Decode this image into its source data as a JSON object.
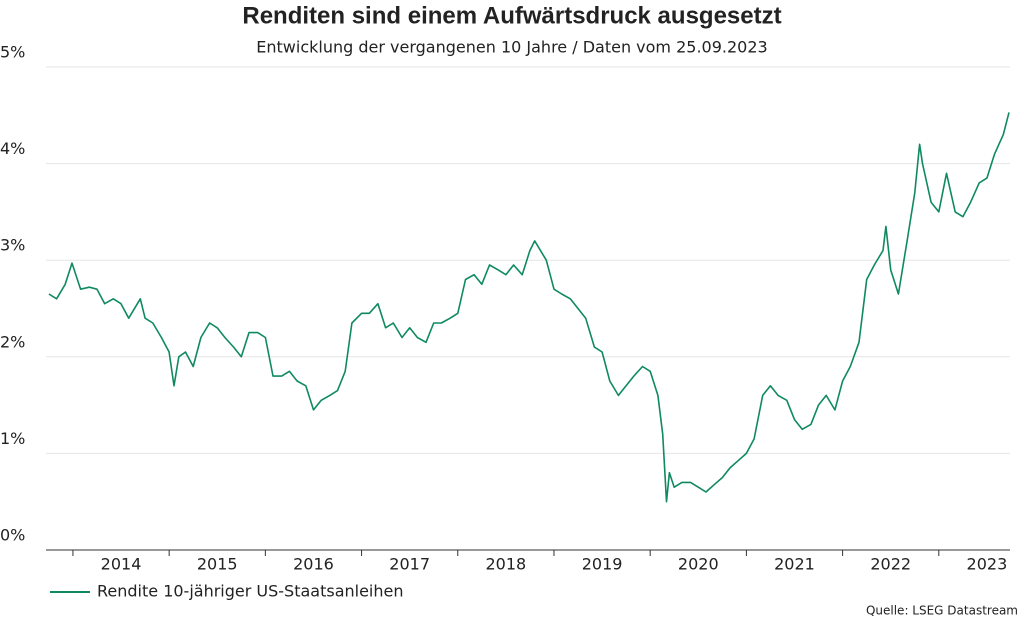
{
  "chart_data": {
    "type": "line",
    "title": "Renditen sind einem Aufwärtsdruck ausgesetzt",
    "subtitle": "Entwicklung der vergangenen 10 Jahre / Daten vom 25.09.2023",
    "source": "Quelle: LSEG Datastream",
    "x": [
      2013.75,
      2013.83,
      2013.92,
      2013.99,
      2014.08,
      2014.17,
      2014.25,
      2014.33,
      2014.42,
      2014.5,
      2014.58,
      2014.7,
      2014.75,
      2014.83,
      2014.92,
      2015.0,
      2015.05,
      2015.1,
      2015.17,
      2015.25,
      2015.33,
      2015.42,
      2015.5,
      2015.58,
      2015.67,
      2015.75,
      2015.83,
      2015.92,
      2016.0,
      2016.08,
      2016.17,
      2016.25,
      2016.33,
      2016.42,
      2016.5,
      2016.58,
      2016.67,
      2016.75,
      2016.83,
      2016.9,
      2017.0,
      2017.08,
      2017.17,
      2017.25,
      2017.33,
      2017.42,
      2017.5,
      2017.58,
      2017.67,
      2017.75,
      2017.83,
      2017.92,
      2018.0,
      2018.08,
      2018.17,
      2018.25,
      2018.33,
      2018.42,
      2018.5,
      2018.58,
      2018.67,
      2018.75,
      2018.8,
      2018.83,
      2018.92,
      2019.0,
      2019.08,
      2019.17,
      2019.25,
      2019.33,
      2019.42,
      2019.5,
      2019.58,
      2019.67,
      2019.75,
      2019.83,
      2019.92,
      2020.0,
      2020.08,
      2020.13,
      2020.17,
      2020.2,
      2020.25,
      2020.33,
      2020.42,
      2020.5,
      2020.58,
      2020.67,
      2020.75,
      2020.83,
      2020.92,
      2021.0,
      2021.08,
      2021.17,
      2021.25,
      2021.33,
      2021.42,
      2021.5,
      2021.58,
      2021.67,
      2021.75,
      2021.83,
      2021.92,
      2022.0,
      2022.08,
      2022.17,
      2022.25,
      2022.33,
      2022.42,
      2022.45,
      2022.5,
      2022.58,
      2022.67,
      2022.75,
      2022.8,
      2022.83,
      2022.92,
      2023.0,
      2023.08,
      2023.17,
      2023.25,
      2023.33,
      2023.42,
      2023.5,
      2023.58,
      2023.67,
      2023.73
    ],
    "series": [
      {
        "name": "Rendite 10-jähriger US-Staatsanleihen",
        "color": "#0f8a5f",
        "values": [
          2.65,
          2.6,
          2.75,
          2.97,
          2.7,
          2.72,
          2.7,
          2.55,
          2.6,
          2.55,
          2.4,
          2.6,
          2.4,
          2.35,
          2.2,
          2.05,
          1.7,
          2.0,
          2.05,
          1.9,
          2.2,
          2.35,
          2.3,
          2.2,
          2.1,
          2.0,
          2.25,
          2.25,
          2.2,
          1.8,
          1.8,
          1.85,
          1.75,
          1.7,
          1.45,
          1.55,
          1.6,
          1.65,
          1.85,
          2.35,
          2.45,
          2.45,
          2.55,
          2.3,
          2.35,
          2.2,
          2.3,
          2.2,
          2.15,
          2.35,
          2.35,
          2.4,
          2.45,
          2.8,
          2.85,
          2.75,
          2.95,
          2.9,
          2.85,
          2.95,
          2.85,
          3.1,
          3.2,
          3.15,
          3.0,
          2.7,
          2.65,
          2.6,
          2.5,
          2.4,
          2.1,
          2.05,
          1.75,
          1.6,
          1.7,
          1.8,
          1.9,
          1.85,
          1.6,
          1.2,
          0.5,
          0.8,
          0.65,
          0.7,
          0.7,
          0.65,
          0.6,
          0.68,
          0.75,
          0.85,
          0.93,
          1.0,
          1.15,
          1.6,
          1.7,
          1.6,
          1.55,
          1.35,
          1.25,
          1.3,
          1.5,
          1.6,
          1.45,
          1.75,
          1.9,
          2.15,
          2.8,
          2.95,
          3.1,
          3.35,
          2.9,
          2.65,
          3.2,
          3.7,
          4.2,
          4.0,
          3.6,
          3.5,
          3.9,
          3.5,
          3.45,
          3.6,
          3.8,
          3.85,
          4.1,
          4.3,
          4.53
        ]
      }
    ],
    "xlim": [
      2013.72,
      2023.74
    ],
    "xticks": [
      {
        "value": 2014.5,
        "label": "2014"
      },
      {
        "value": 2015.5,
        "label": "2015"
      },
      {
        "value": 2016.5,
        "label": "2016"
      },
      {
        "value": 2017.5,
        "label": "2017"
      },
      {
        "value": 2018.5,
        "label": "2018"
      },
      {
        "value": 2019.5,
        "label": "2019"
      },
      {
        "value": 2020.5,
        "label": "2020"
      },
      {
        "value": 2021.5,
        "label": "2021"
      },
      {
        "value": 2022.5,
        "label": "2022"
      },
      {
        "value": 2023.5,
        "label": "2023"
      }
    ],
    "ylim": [
      0,
      5
    ],
    "yticks": [
      {
        "value": 0,
        "label": "0%"
      },
      {
        "value": 1,
        "label": "1%"
      },
      {
        "value": 2,
        "label": "2%"
      },
      {
        "value": 3,
        "label": "3%"
      },
      {
        "value": 4,
        "label": "4%"
      },
      {
        "value": 5,
        "label": "5%"
      }
    ],
    "grid": true,
    "legend": "bottom-left"
  }
}
